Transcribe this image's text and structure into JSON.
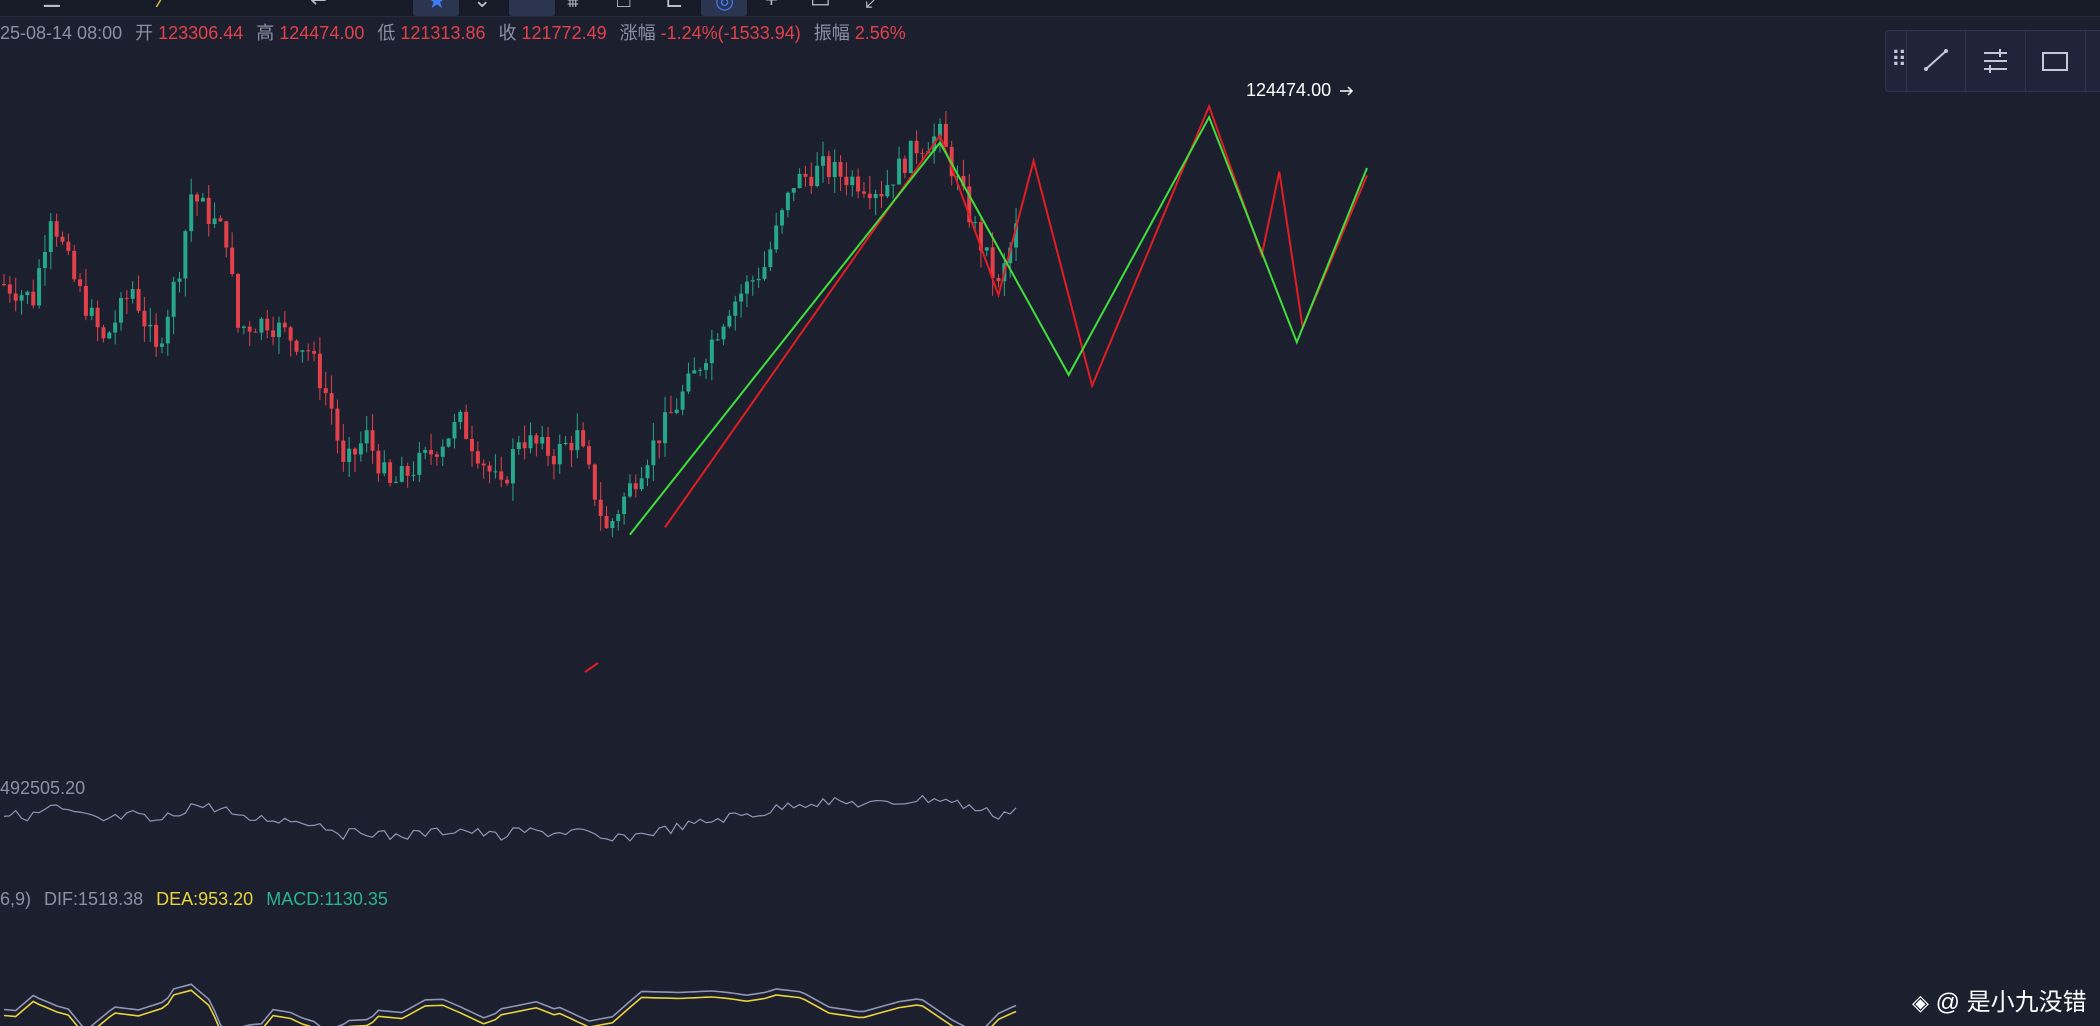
{
  "header": {
    "date": "25-08-14 08:00",
    "open_label": "开",
    "open": "123306.44",
    "high_label": "高",
    "high": "124474.00",
    "low_label": "低",
    "low": "121313.86",
    "close_label": "收",
    "close": "121772.49",
    "change_label": "涨幅",
    "change": "-1.24%(-1533.94)",
    "amplitude_label": "振幅",
    "amplitude": "2.56%"
  },
  "volume": {
    "label": "492505.20"
  },
  "macd": {
    "params": "6,9)",
    "dif": "DIF:1518.38",
    "dea": "DEA:953.20",
    "macd": "MACD:1130.35"
  },
  "price_marker": "124474.00",
  "watermark": "@ 是小九没错",
  "colors": {
    "up": "#26a68a",
    "down": "#e2414a",
    "green_line": "#3fe03a",
    "red_line": "#e11d23",
    "dea": "#e8d33c"
  },
  "toolbar_icons": [
    "menu-icon",
    "indicator-icon",
    "star-icon",
    "draw-icon",
    "bars-icon",
    "layout-icon",
    "settings-icon"
  ],
  "draw_panel_icons": [
    "drag-handle-icon",
    "trendline-icon",
    "settings-lines-icon",
    "rectangle-icon"
  ],
  "chart_data": {
    "type": "candlestick",
    "green_zigzag": [
      [
        107,
        100500
      ],
      [
        160,
        111300
      ],
      [
        182,
        104900
      ],
      [
        206,
        112000
      ],
      [
        221,
        105800
      ],
      [
        233,
        110600
      ]
    ],
    "red_zigzag": [
      [
        113,
        100700
      ],
      [
        160,
        111500
      ],
      [
        170,
        107100
      ],
      [
        176,
        110800
      ],
      [
        186,
        104600
      ],
      [
        206,
        112300
      ],
      [
        215,
        108200
      ],
      [
        218,
        110500
      ],
      [
        222,
        106200
      ],
      [
        233,
        110400
      ]
    ],
    "last_high": 124474.0
  }
}
